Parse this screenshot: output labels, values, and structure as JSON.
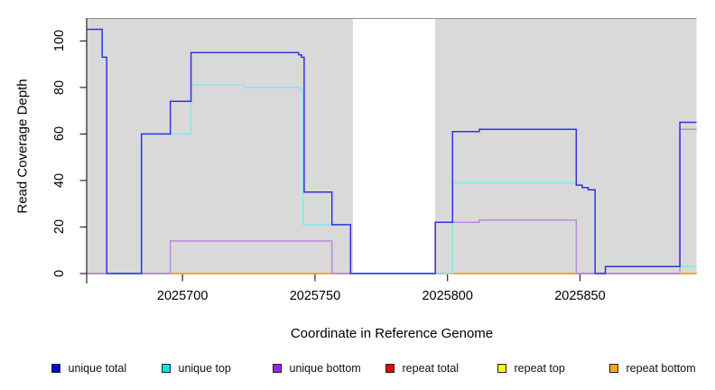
{
  "chart_data": {
    "type": "line",
    "step": true,
    "title": "",
    "xlabel": "Coordinate in Reference Genome",
    "ylabel": "Read Coverage Depth",
    "xlim": [
      2025664,
      2025894
    ],
    "ylim": [
      0,
      110
    ],
    "grid": false,
    "legend_position": "bottom",
    "x_ticks": [
      2025700,
      2025750,
      2025800,
      2025850
    ],
    "x_tick_labels": [
      "2025700",
      "2025750",
      "2025800",
      "2025850"
    ],
    "y_ticks": [
      0,
      20,
      40,
      60,
      80,
      100
    ],
    "y_tick_labels": [
      "0",
      "20",
      "40",
      "60",
      "80",
      "100"
    ],
    "shaded_regions": [
      {
        "from": 2025664,
        "to": 2025764.3,
        "color": "#d9d9d9"
      },
      {
        "from": 2025795.3,
        "to": 2025894,
        "color": "#d9d9d9"
      }
    ],
    "series": [
      {
        "name": "repeat top",
        "color": "#ffff4d",
        "points": [
          [
            2025664,
            0
          ],
          [
            2025894,
            0
          ]
        ]
      },
      {
        "name": "repeat total",
        "color": "#e25f75",
        "points": [
          [
            2025664,
            0
          ],
          [
            2025894,
            0
          ]
        ]
      },
      {
        "name": "repeat bottom",
        "color": "#ff9e1b",
        "points": [
          [
            2025664,
            0
          ],
          [
            2025894,
            0
          ]
        ]
      },
      {
        "name": "unique bottom",
        "color": "#b98ae2",
        "points": [
          [
            2025664,
            0
          ],
          [
            2025695.4,
            14
          ],
          [
            2025756.4,
            0
          ],
          [
            2025795.4,
            22
          ],
          [
            2025812,
            23
          ],
          [
            2025848.6,
            0
          ],
          [
            2025887.7,
            62
          ],
          [
            2025894,
            62
          ]
        ]
      },
      {
        "name": "unique top",
        "color": "#86e6f0",
        "points": [
          [
            2025664,
            105
          ],
          [
            2025669.7,
            93
          ],
          [
            2025671.4,
            0
          ],
          [
            2025684.5,
            60
          ],
          [
            2025703.2,
            81
          ],
          [
            2025723.3,
            80
          ],
          [
            2025744.3,
            79
          ],
          [
            2025745.5,
            21
          ],
          [
            2025763.4,
            0
          ],
          [
            2025801.9,
            39
          ],
          [
            2025848.6,
            38
          ],
          [
            2025850.8,
            37
          ],
          [
            2025853.1,
            36
          ],
          [
            2025855.7,
            0
          ],
          [
            2025859.6,
            3
          ],
          [
            2025894,
            3
          ]
        ]
      },
      {
        "name": "unique total",
        "color": "#3232e2",
        "points": [
          [
            2025664,
            105
          ],
          [
            2025669.7,
            93
          ],
          [
            2025671.4,
            0
          ],
          [
            2025684.5,
            60
          ],
          [
            2025695.4,
            74
          ],
          [
            2025703.2,
            95
          ],
          [
            2025743.8,
            94
          ],
          [
            2025744.9,
            93
          ],
          [
            2025745.9,
            35
          ],
          [
            2025756.4,
            21
          ],
          [
            2025763.4,
            0
          ],
          [
            2025795.4,
            22
          ],
          [
            2025801.9,
            61
          ],
          [
            2025812,
            62
          ],
          [
            2025848.6,
            38
          ],
          [
            2025850.8,
            37
          ],
          [
            2025853.1,
            36
          ],
          [
            2025855.7,
            0
          ],
          [
            2025859.6,
            3
          ],
          [
            2025887.7,
            65
          ],
          [
            2025894,
            65
          ]
        ]
      }
    ],
    "baseline_visible_overlays": [
      {
        "from": 2025664,
        "to": 2025695.4,
        "value": 0,
        "color": "#e25f75"
      },
      {
        "from": 2025848.6,
        "to": 2025887.7,
        "value": 0,
        "color": "#e25f75"
      }
    ],
    "legend": [
      {
        "label": "unique total",
        "color": "#0000e6"
      },
      {
        "label": "unique top",
        "color": "#00e6ee"
      },
      {
        "label": "unique bottom",
        "color": "#a020f0"
      },
      {
        "label": "repeat total",
        "color": "#ee0000"
      },
      {
        "label": "repeat top",
        "color": "#ffff00"
      },
      {
        "label": "repeat bottom",
        "color": "#ffa513"
      }
    ]
  }
}
